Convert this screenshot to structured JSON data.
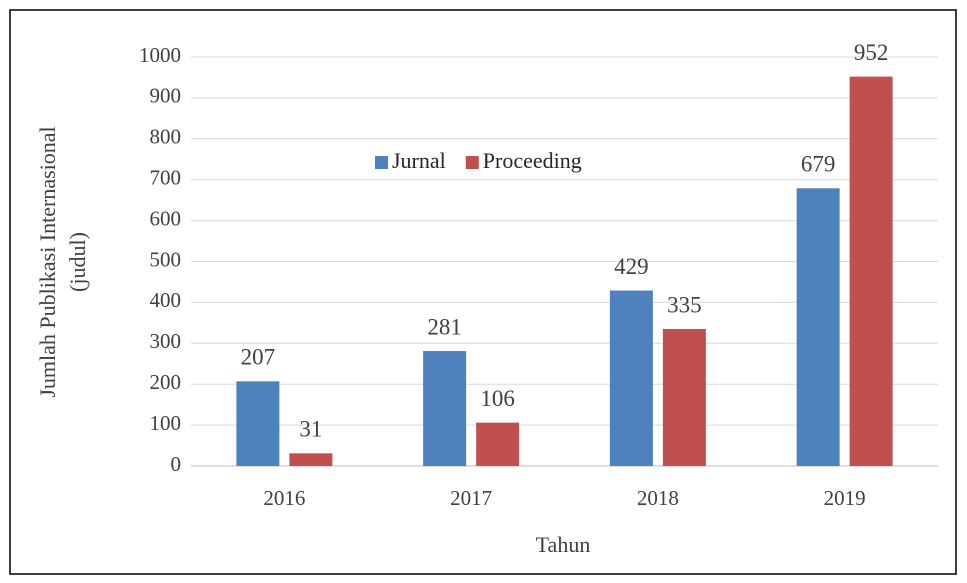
{
  "chart_data": {
    "type": "bar",
    "categories": [
      "2016",
      "2017",
      "2018",
      "2019"
    ],
    "series": [
      {
        "name": "Jurnal",
        "color": "#4f81bd",
        "values": [
          207,
          281,
          429,
          679
        ]
      },
      {
        "name": "Proceeding",
        "color": "#c0504d",
        "values": [
          31,
          106,
          335,
          952
        ]
      }
    ],
    "ylim": [
      0,
      1000
    ],
    "yticks": [
      0,
      100,
      200,
      300,
      400,
      500,
      600,
      700,
      800,
      900,
      1000
    ],
    "xlabel": "Tahun",
    "ylabel": [
      "Jumlah Publikasi Internasional",
      "(judul)"
    ],
    "grid": true,
    "legend": "top"
  }
}
